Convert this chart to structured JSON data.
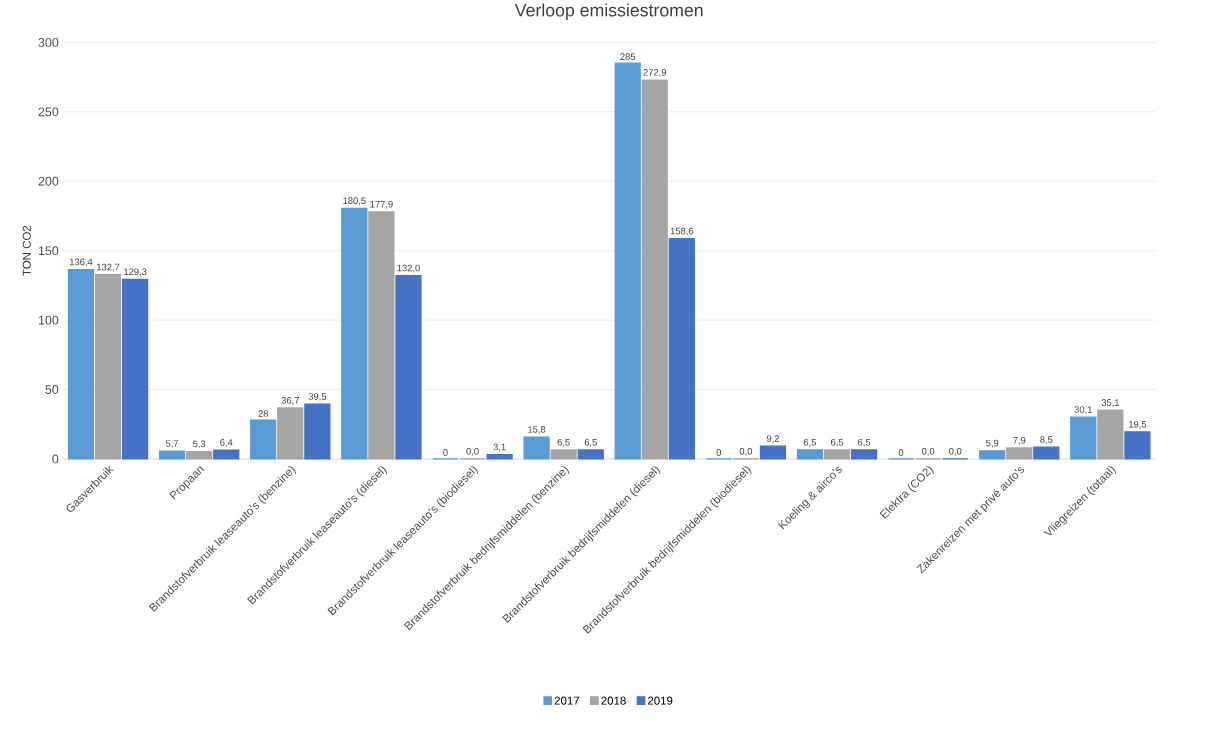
{
  "chart_data": {
    "type": "bar",
    "title": "Verloop emissiestromen",
    "ylabel": "TON CO2",
    "categories": [
      "Gasverbruik",
      "Propaan",
      "Brandstofverbruik leaseauto's (benzine)",
      "Brandstofverbruik leaseauto's (diesel)",
      "Brandstofverbruik leaseauto's (biodiesel)",
      "Brandstofverbruik bedrijfsmiddelen (benzine)",
      "Brandstofverbruik bedrijfsmiddelen (diesel)",
      "Brandstofverbruik bedrijfsmiddelen (biodiesel)",
      "Koeling & airco's",
      "Elektra (CO2)",
      "Zakenreizen met privé auto's",
      "Vliegreizen (totaal)"
    ],
    "series": [
      {
        "name": "2017",
        "color": "#5b9bd5",
        "values": [
          136.4,
          5.7,
          28,
          180.5,
          0,
          15.8,
          285,
          0,
          6.5,
          0,
          5.9,
          30.1
        ],
        "value_labels": [
          "136,4",
          "5,7",
          "28",
          "180,5",
          "0",
          "15,8",
          "285",
          "0",
          "6,5",
          "0",
          "5,9",
          "30,1"
        ]
      },
      {
        "name": "2018",
        "color": "#a5a5a5",
        "values": [
          132.7,
          5.3,
          36.7,
          177.9,
          0.0,
          6.5,
          272.9,
          0.0,
          6.5,
          0.0,
          7.9,
          35.1
        ],
        "value_labels": [
          "132,7",
          "5,3",
          "36,7",
          "177,9",
          "0,0",
          "6,5",
          "272,9",
          "0,0",
          "6,5",
          "0,0",
          "7,9",
          "35,1"
        ]
      },
      {
        "name": "2019",
        "color": "#4472c4",
        "values": [
          129.3,
          6.4,
          39.5,
          132.0,
          3.1,
          6.5,
          158.6,
          9.2,
          6.5,
          0.0,
          8.5,
          19.5
        ],
        "value_labels": [
          "129,3",
          "6,4",
          "39,5",
          "132,0",
          "3,1",
          "6,5",
          "158,6",
          "9,2",
          "6,5",
          "0,0",
          "8,5",
          "19,5"
        ]
      }
    ],
    "ylim": [
      0,
      300
    ],
    "yticks": [
      0,
      50,
      100,
      150,
      200,
      250,
      300
    ],
    "grid": "y",
    "legend": "bottom"
  }
}
